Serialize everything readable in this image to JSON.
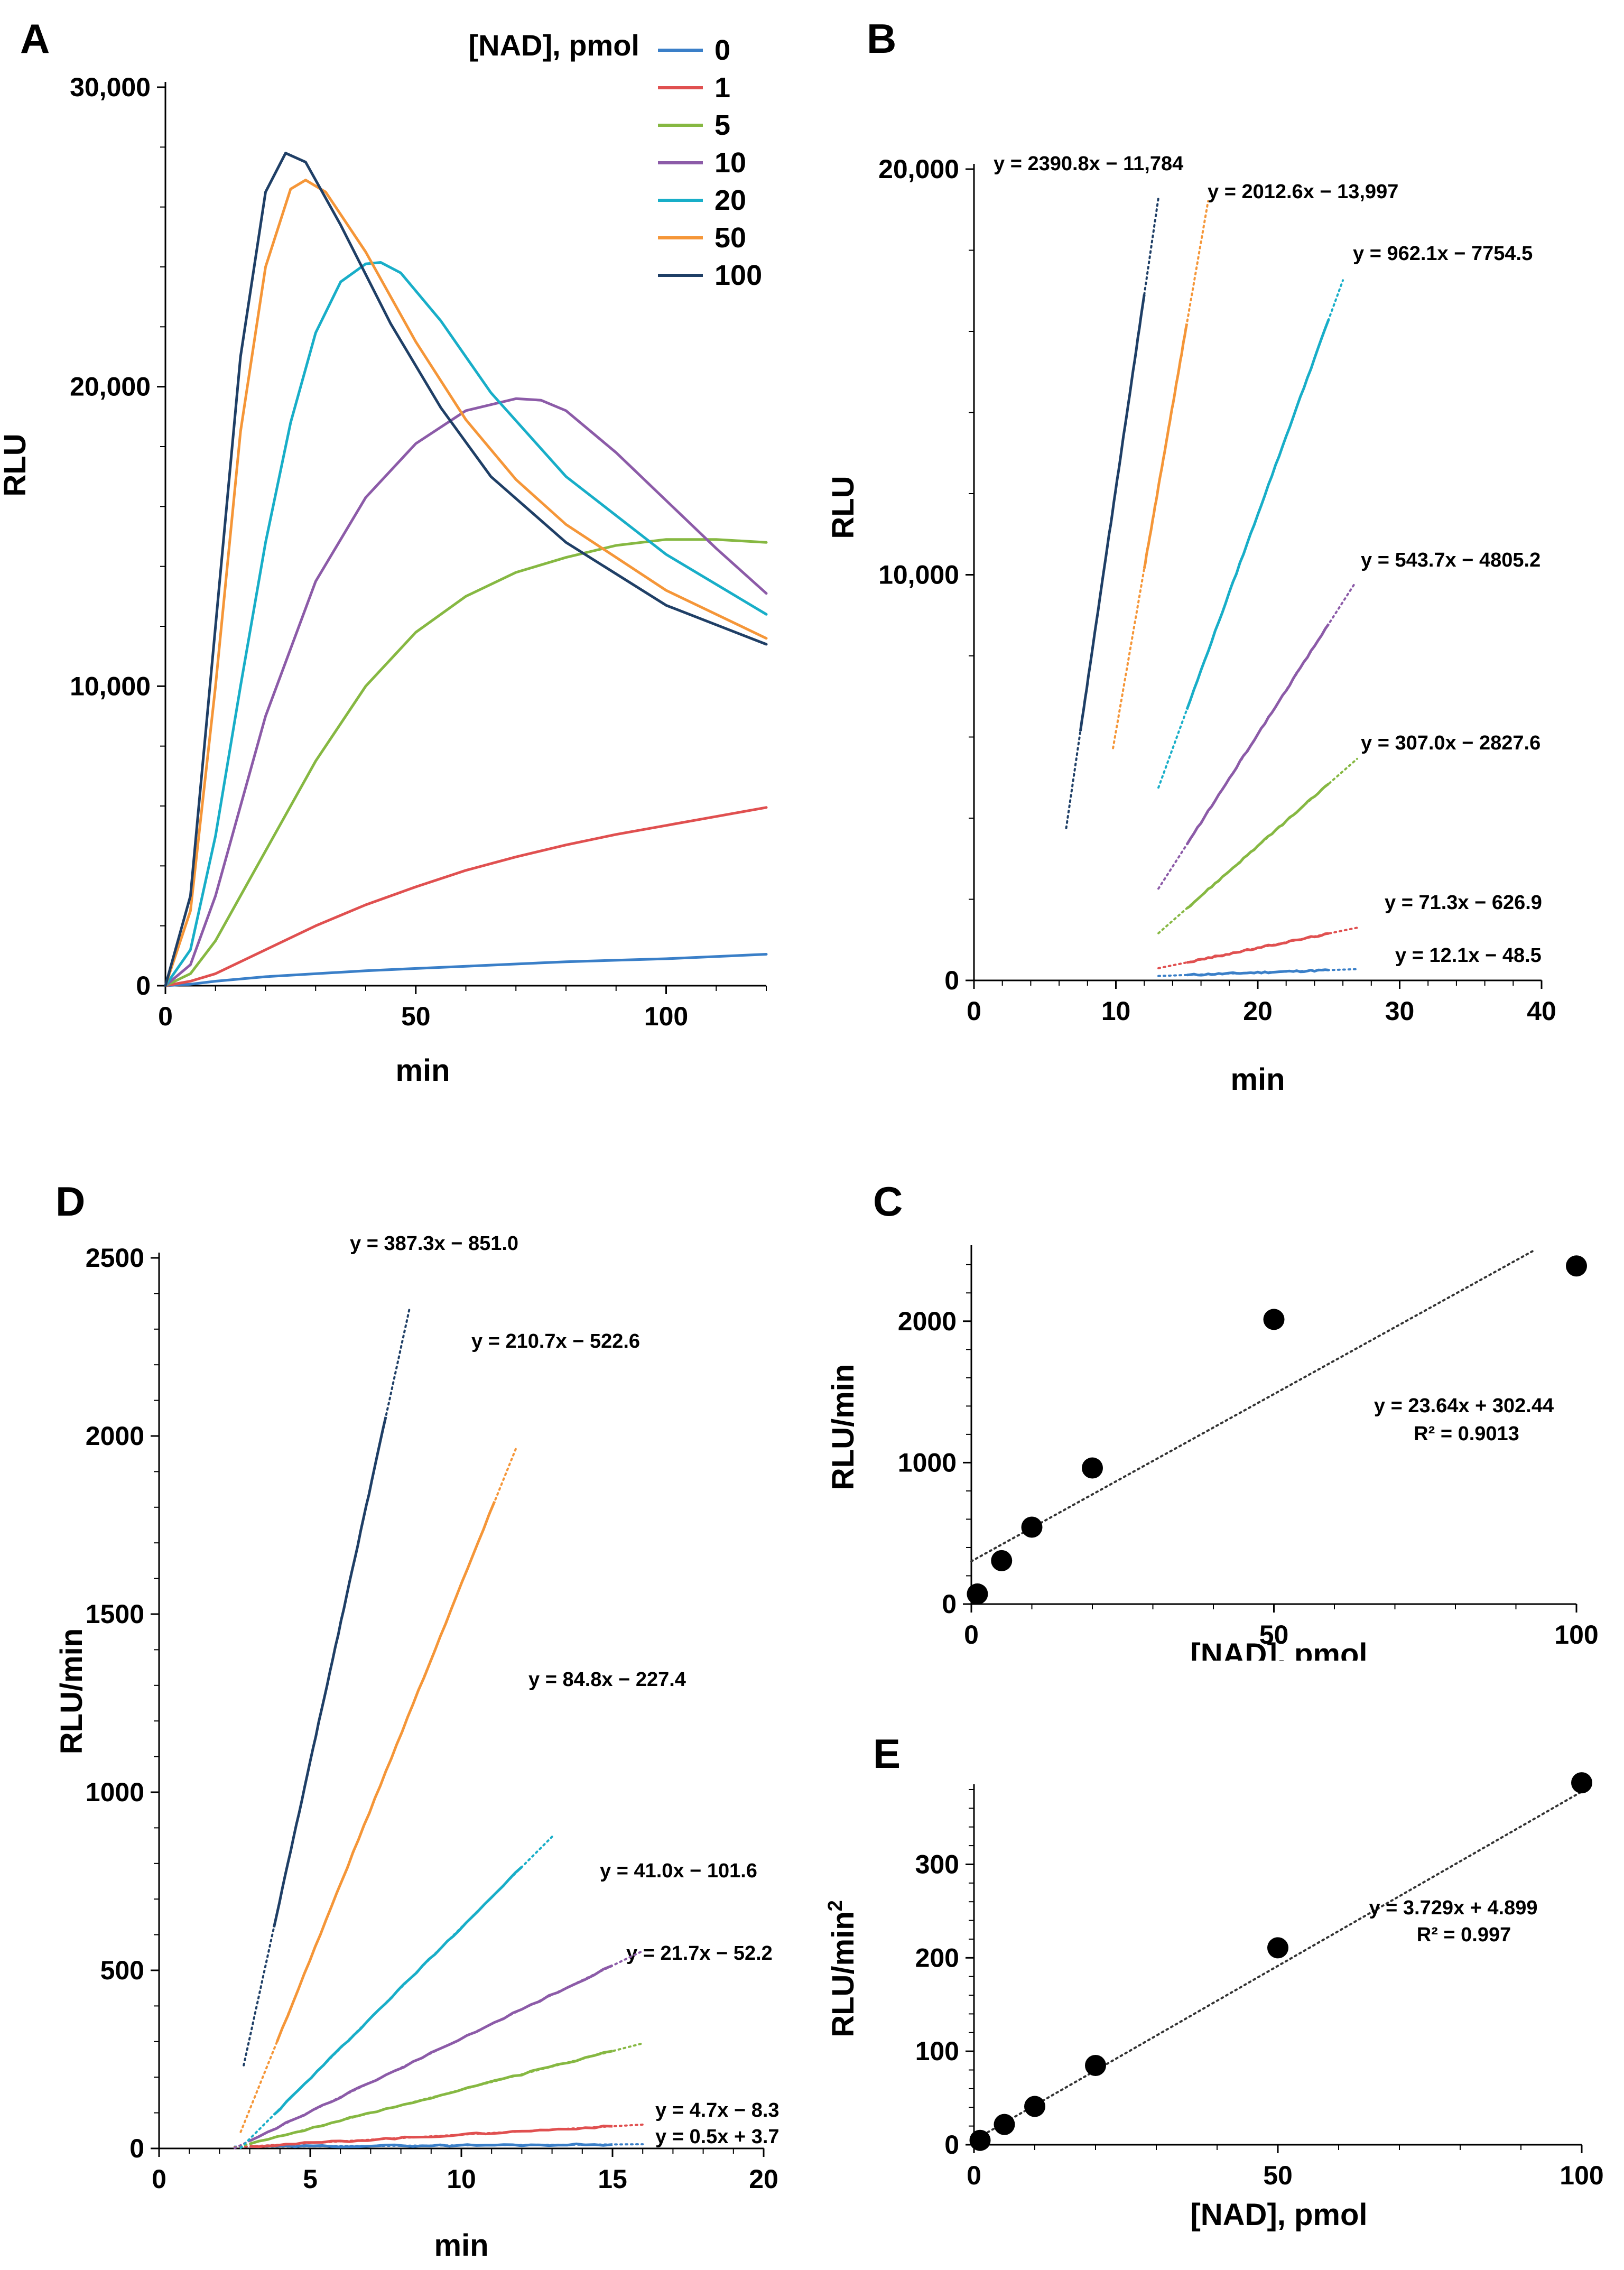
{
  "colors": {
    "n0": "#3a7fc8",
    "n1": "#e05050",
    "n5": "#86b842",
    "n10": "#8c5ba8",
    "n20": "#18aec8",
    "n50": "#f59638",
    "n100": "#1f3f66",
    "axis": "#000000",
    "trend": "#333333"
  },
  "chart_data": [
    {
      "panel": "A",
      "type": "line",
      "xlabel": "min",
      "ylabel": "RLU",
      "xlim": [
        0,
        120
      ],
      "ylim": [
        0,
        30000
      ],
      "x_ticks": [
        "0",
        "50",
        "100"
      ],
      "x_tick_values": [
        0,
        50,
        100
      ],
      "y_ticks": [
        "0",
        "10,000",
        "20,000",
        "30,000"
      ],
      "y_tick_values": [
        0,
        10000,
        20000,
        30000
      ],
      "legend_title": "[NAD], pmol",
      "legend_position": "top-right",
      "series": [
        {
          "name": "0",
          "color_key": "n0",
          "x": [
            0,
            5,
            10,
            20,
            40,
            60,
            80,
            100,
            120
          ],
          "values": [
            0,
            50,
            150,
            300,
            500,
            650,
            800,
            900,
            1050
          ]
        },
        {
          "name": "1",
          "color_key": "n1",
          "x": [
            0,
            5,
            10,
            20,
            30,
            40,
            50,
            60,
            70,
            80,
            90,
            100,
            110,
            120
          ],
          "values": [
            0,
            150,
            400,
            1200,
            2000,
            2700,
            3300,
            3850,
            4300,
            4700,
            5050,
            5350,
            5650,
            5950
          ]
        },
        {
          "name": "5",
          "color_key": "n5",
          "x": [
            0,
            5,
            10,
            15,
            20,
            30,
            40,
            50,
            60,
            70,
            80,
            90,
            100,
            110,
            120
          ],
          "values": [
            0,
            400,
            1500,
            3000,
            4500,
            7500,
            10000,
            11800,
            13000,
            13800,
            14300,
            14700,
            14900,
            14900,
            14800
          ]
        },
        {
          "name": "10",
          "color_key": "n10",
          "x": [
            0,
            5,
            10,
            15,
            20,
            30,
            40,
            50,
            60,
            70,
            75,
            80,
            90,
            100,
            110,
            120
          ],
          "values": [
            0,
            700,
            3000,
            6000,
            9000,
            13500,
            16300,
            18100,
            19200,
            19600,
            19550,
            19200,
            17800,
            16200,
            14600,
            13100
          ]
        },
        {
          "name": "20",
          "color_key": "n20",
          "x": [
            0,
            5,
            10,
            15,
            20,
            25,
            30,
            35,
            40,
            43,
            47,
            55,
            65,
            80,
            100,
            120
          ],
          "values": [
            0,
            1200,
            5000,
            10000,
            14800,
            18800,
            21800,
            23500,
            24100,
            24150,
            23800,
            22200,
            19800,
            17000,
            14400,
            12400
          ]
        },
        {
          "name": "50",
          "color_key": "n50",
          "x": [
            0,
            5,
            10,
            15,
            20,
            25,
            28,
            32,
            40,
            50,
            60,
            70,
            80,
            100,
            120
          ],
          "values": [
            0,
            2500,
            10000,
            18500,
            24000,
            26600,
            26900,
            26500,
            24500,
            21500,
            18900,
            16900,
            15400,
            13200,
            11600
          ]
        },
        {
          "name": "100",
          "color_key": "n100",
          "x": [
            0,
            5,
            10,
            15,
            20,
            24,
            28,
            35,
            45,
            55,
            65,
            80,
            100,
            120
          ],
          "values": [
            0,
            3000,
            12000,
            21000,
            26500,
            27800,
            27500,
            25400,
            22100,
            19300,
            17000,
            14800,
            12700,
            11400
          ]
        }
      ]
    },
    {
      "panel": "B",
      "type": "line",
      "xlabel": "min",
      "ylabel": "RLU",
      "xlim": [
        0,
        40
      ],
      "ylim": [
        0,
        20000
      ],
      "x_ticks": [
        "0",
        "10",
        "20",
        "30",
        "40"
      ],
      "x_tick_values": [
        0,
        10,
        20,
        30,
        40
      ],
      "y_ticks": [
        "0",
        "10,000",
        "20,000"
      ],
      "y_tick_values": [
        0,
        10000,
        20000
      ],
      "series": [
        {
          "name": "0",
          "color_key": "n0",
          "equation": "y = 12.1x − 48.5",
          "slope": 12.1,
          "intercept": -48.5,
          "data_range": [
            15,
            25
          ],
          "trend_range": [
            13,
            27
          ]
        },
        {
          "name": "1",
          "color_key": "n1",
          "equation": "y = 71.3x − 626.9",
          "slope": 71.3,
          "intercept": -626.9,
          "data_range": [
            15,
            25
          ],
          "trend_range": [
            13,
            27
          ]
        },
        {
          "name": "5",
          "color_key": "n5",
          "equation": "y = 307.0x − 2827.6",
          "slope": 307.0,
          "intercept": -2827.6,
          "data_range": [
            15,
            25
          ],
          "trend_range": [
            13,
            27
          ]
        },
        {
          "name": "10",
          "color_key": "n10",
          "equation": "y = 543.7x − 4805.2",
          "slope": 543.7,
          "intercept": -4805.2,
          "data_range": [
            15,
            25
          ],
          "trend_range": [
            13,
            26.9
          ]
        },
        {
          "name": "20",
          "color_key": "n20",
          "equation": "y = 962.1x − 7754.5",
          "slope": 962.1,
          "intercept": -7754.5,
          "data_range": [
            15,
            25
          ],
          "trend_range": [
            13,
            26
          ]
        },
        {
          "name": "50",
          "color_key": "n50",
          "equation": "y = 2012.6x − 13,997",
          "slope": 2012.6,
          "intercept": -13997,
          "data_range": [
            12,
            15
          ],
          "trend_range": [
            9.8,
            16.5
          ]
        },
        {
          "name": "100",
          "color_key": "n100",
          "equation": "y = 2390.8x − 11,784",
          "slope": 2390.8,
          "intercept": -11784,
          "data_range": [
            7.5,
            12
          ],
          "trend_range": [
            6.5,
            13
          ]
        }
      ]
    },
    {
      "panel": "D",
      "type": "line",
      "xlabel": "min",
      "ylabel": "RLU/min",
      "xlim": [
        0,
        20
      ],
      "ylim": [
        0,
        2500
      ],
      "x_ticks": [
        "0",
        "5",
        "10",
        "15",
        "20"
      ],
      "x_tick_values": [
        0,
        5,
        10,
        15,
        20
      ],
      "y_ticks": [
        "0",
        "500",
        "1000",
        "1500",
        "2000",
        "2500"
      ],
      "y_tick_values": [
        0,
        500,
        1000,
        1500,
        2000,
        2500
      ],
      "series": [
        {
          "name": "0",
          "color_key": "n0",
          "equation": "y = 0.5x + 3.7",
          "slope": 0.5,
          "intercept": 3.7,
          "data_range": [
            3,
            15
          ],
          "trend_range": [
            2.5,
            16
          ]
        },
        {
          "name": "1",
          "color_key": "n1",
          "equation": "y = 4.7x − 8.3",
          "slope": 4.7,
          "intercept": -8.3,
          "data_range": [
            3,
            15
          ],
          "trend_range": [
            2.5,
            16
          ]
        },
        {
          "name": "5",
          "color_key": "n5",
          "equation": "y = 21.7x − 52.2",
          "slope": 21.7,
          "intercept": -52.2,
          "data_range": [
            3,
            15
          ],
          "trend_range": [
            2.5,
            16
          ]
        },
        {
          "name": "10",
          "color_key": "n10",
          "equation": "y = 41.0x − 101.6",
          "slope": 41.0,
          "intercept": -101.6,
          "data_range": [
            3,
            15
          ],
          "trend_range": [
            2.5,
            16
          ]
        },
        {
          "name": "20",
          "color_key": "n20",
          "equation": "y = 84.8x − 227.4",
          "slope": 84.8,
          "intercept": -227.4,
          "data_range": [
            3.8,
            12
          ],
          "trend_range": [
            2.7,
            13
          ]
        },
        {
          "name": "50",
          "color_key": "n50",
          "equation": "y = 210.7x − 522.6",
          "slope": 210.7,
          "intercept": -522.6,
          "data_range": [
            3.9,
            11.1
          ],
          "trend_range": [
            2.7,
            11.8
          ]
        },
        {
          "name": "100",
          "color_key": "n100",
          "equation": "y = 387.3x − 851.0",
          "slope": 387.3,
          "intercept": -851.0,
          "data_range": [
            3.8,
            7.5
          ],
          "trend_range": [
            2.8,
            8.3
          ]
        }
      ]
    },
    {
      "panel": "C",
      "type": "scatter",
      "xlabel": "[NAD], pmol",
      "ylabel": "RLU/min",
      "xlim": [
        0,
        100
      ],
      "ylim": [
        0,
        2500
      ],
      "x_ticks": [
        "0",
        "50",
        "100"
      ],
      "x_tick_values": [
        0,
        50,
        100
      ],
      "y_ticks": [
        "0",
        "1000",
        "2000"
      ],
      "y_tick_values": [
        0,
        1000,
        2000
      ],
      "x": [
        1,
        5,
        10,
        20,
        50,
        100
      ],
      "values": [
        71.3,
        307.0,
        543.7,
        962.1,
        2012.6,
        2390.8
      ],
      "trend_slope": 23.64,
      "trend_intercept": 302.44,
      "trend_range": [
        0,
        93
      ],
      "equation": "y = 23.64x + 302.44",
      "r2": "R² = 0.9013"
    },
    {
      "panel": "E",
      "type": "scatter",
      "xlabel": "[NAD], pmol",
      "ylabel": "RLU/min",
      "ylabel_sup": "2",
      "xlim": [
        0,
        100
      ],
      "ylim": [
        0,
        380
      ],
      "x_ticks": [
        "0",
        "50",
        "100"
      ],
      "x_tick_values": [
        0,
        50,
        100
      ],
      "y_ticks": [
        "0",
        "100",
        "200",
        "300"
      ],
      "y_tick_values": [
        0,
        100,
        200,
        300
      ],
      "x": [
        1,
        5,
        10,
        20,
        50,
        100
      ],
      "values": [
        4.7,
        21.7,
        41.0,
        84.8,
        210.7,
        387.3
      ],
      "trend_slope": 3.729,
      "trend_intercept": 4.899,
      "trend_range": [
        0,
        100
      ],
      "equation": "y = 3.729x + 4.899",
      "r2": "R² = 0.997"
    }
  ]
}
